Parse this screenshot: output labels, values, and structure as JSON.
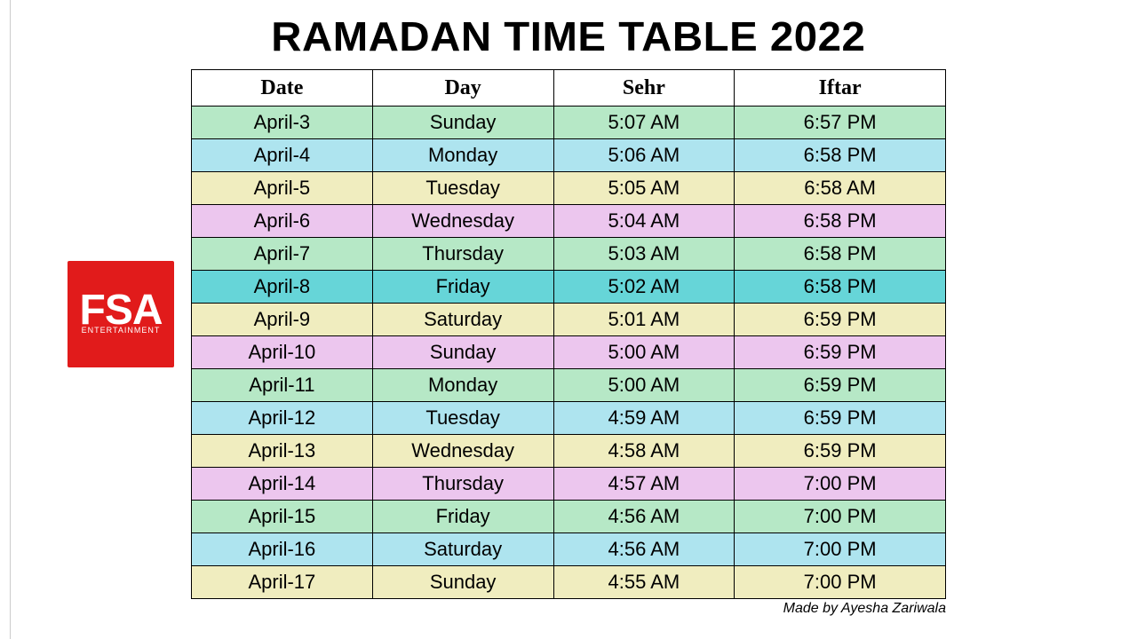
{
  "title": "RAMADAN TIME TABLE 2022",
  "credit": "Made by Ayesha Zariwala",
  "logo": {
    "big": "FSA",
    "small": "ENTERTAINMENT",
    "bg": "#e11b1b",
    "fg": "#ffffff"
  },
  "table": {
    "columns": [
      "Date",
      "Day",
      "Sehr",
      "Iftar"
    ],
    "header_bg": "#ffffff",
    "header_font": "Georgia",
    "header_fontsize": 24,
    "cell_fontsize": 22,
    "border_color": "#000000",
    "row_colors": {
      "green": "#b6e8c6",
      "cyan": "#aee4ef",
      "yellow": "#f0edbf",
      "pink": "#ecc6ee",
      "teal": "#66d5d8"
    },
    "rows": [
      {
        "date": "April-3",
        "day": "Sunday",
        "sehr": "5:07 AM",
        "iftar": "6:57 PM",
        "color": "green"
      },
      {
        "date": "April-4",
        "day": "Monday",
        "sehr": "5:06 AM",
        "iftar": "6:58 PM",
        "color": "cyan"
      },
      {
        "date": "April-5",
        "day": "Tuesday",
        "sehr": "5:05 AM",
        "iftar": "6:58 AM",
        "color": "yellow"
      },
      {
        "date": "April-6",
        "day": "Wednesday",
        "sehr": "5:04 AM",
        "iftar": "6:58 PM",
        "color": "pink"
      },
      {
        "date": "April-7",
        "day": "Thursday",
        "sehr": "5:03 AM",
        "iftar": "6:58 PM",
        "color": "green"
      },
      {
        "date": "April-8",
        "day": "Friday",
        "sehr": "5:02 AM",
        "iftar": "6:58 PM",
        "color": "teal"
      },
      {
        "date": "April-9",
        "day": "Saturday",
        "sehr": "5:01 AM",
        "iftar": "6:59 PM",
        "color": "yellow"
      },
      {
        "date": "April-10",
        "day": "Sunday",
        "sehr": "5:00 AM",
        "iftar": "6:59 PM",
        "color": "pink"
      },
      {
        "date": "April-11",
        "day": "Monday",
        "sehr": "5:00 AM",
        "iftar": "6:59 PM",
        "color": "green"
      },
      {
        "date": "April-12",
        "day": "Tuesday",
        "sehr": "4:59 AM",
        "iftar": "6:59 PM",
        "color": "cyan"
      },
      {
        "date": "April-13",
        "day": "Wednesday",
        "sehr": "4:58 AM",
        "iftar": "6:59 PM",
        "color": "yellow"
      },
      {
        "date": "April-14",
        "day": "Thursday",
        "sehr": "4:57 AM",
        "iftar": "7:00 PM",
        "color": "pink"
      },
      {
        "date": "April-15",
        "day": "Friday",
        "sehr": "4:56 AM",
        "iftar": "7:00 PM",
        "color": "green"
      },
      {
        "date": "April-16",
        "day": "Saturday",
        "sehr": "4:56 AM",
        "iftar": "7:00 PM",
        "color": "cyan"
      },
      {
        "date": "April-17",
        "day": "Sunday",
        "sehr": "4:55 AM",
        "iftar": "7:00 PM",
        "color": "yellow"
      }
    ]
  }
}
